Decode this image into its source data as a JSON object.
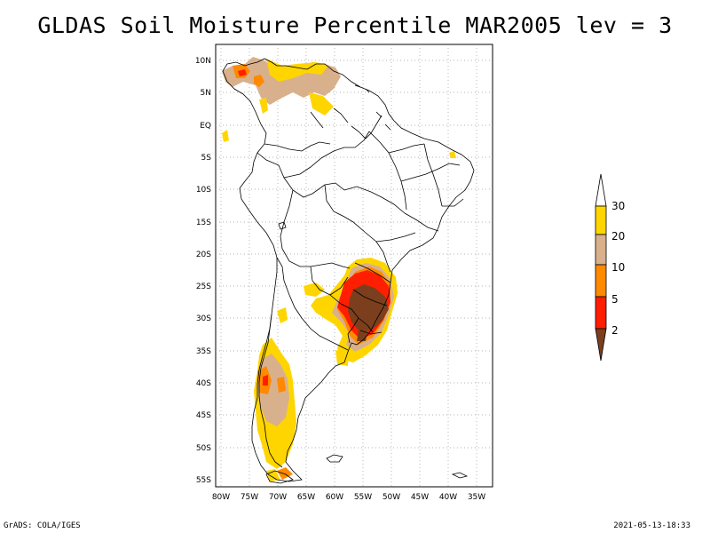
{
  "title": "GLDAS Soil Moisture Percentile MAR2005 lev = 3",
  "footer": {
    "left": "GrADS: COLA/IGES",
    "right": "2021-05-13-18:33"
  },
  "map": {
    "lat_labels": [
      "10N",
      "5N",
      "EQ",
      "5S",
      "10S",
      "15S",
      "20S",
      "25S",
      "30S",
      "35S",
      "40S",
      "45S",
      "50S",
      "55S"
    ],
    "lon_labels": [
      "80W",
      "75W",
      "70W",
      "65W",
      "60W",
      "55W",
      "50W",
      "45W",
      "40W",
      "35W"
    ]
  },
  "legend": {
    "labels": [
      "30",
      "20",
      "10",
      "5",
      "2"
    ],
    "colors": [
      "#ffd700",
      "#d2b48c",
      "#ff8c00",
      "#ff0000",
      "#8b4513"
    ]
  },
  "colors": {
    "p2": "#7b3f1d",
    "p5": "#ff1f00",
    "p10": "#ff8a00",
    "p20": "#d9b08c",
    "p30": "#ffd500"
  }
}
